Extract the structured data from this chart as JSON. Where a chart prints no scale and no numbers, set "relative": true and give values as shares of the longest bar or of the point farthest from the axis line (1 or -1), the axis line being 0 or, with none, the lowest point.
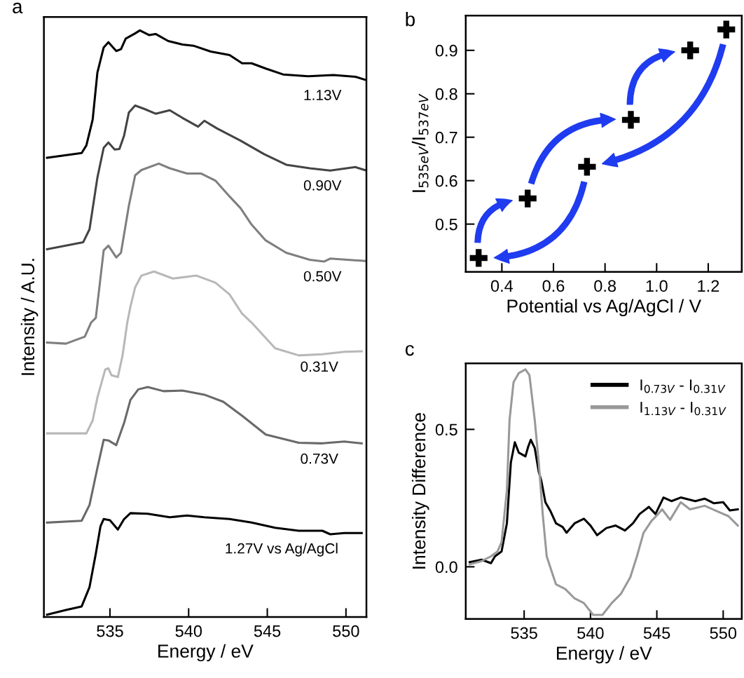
{
  "chart_data": [
    {
      "type": "line",
      "xlabel": "Energy / eV",
      "ylabel": "Intensity / A.U.",
      "annotations": [
        "a"
      ],
      "relative": true,
      "xlim": [
        530.8,
        551.3
      ],
      "xticks": [
        535,
        540,
        545,
        550
      ],
      "series": [
        {
          "name": "1.13V",
          "color": "#000000",
          "x": [
            531.0,
            533.2,
            533.5,
            533.9,
            534.2,
            534.6,
            534.9,
            535.4,
            535.7,
            536.0,
            536.6,
            536.9,
            537.5,
            537.9,
            538.7,
            539.6,
            540.3,
            541.4,
            542.6,
            543.4,
            544.0,
            544.9,
            546.0,
            547.6,
            549.2,
            550.6,
            551.2
          ],
          "values": [
            0.783,
            0.791,
            0.804,
            0.848,
            0.928,
            0.971,
            0.98,
            0.965,
            0.968,
            0.986,
            0.995,
            1.0,
            0.992,
            0.994,
            0.982,
            0.976,
            0.974,
            0.964,
            0.958,
            0.944,
            0.944,
            0.935,
            0.925,
            0.922,
            0.924,
            0.921,
            0.916
          ]
        },
        {
          "name": "0.90V",
          "color": "#444444",
          "x": [
            531.0,
            533.3,
            533.7,
            534.2,
            534.6,
            534.9,
            535.3,
            535.6,
            535.9,
            536.2,
            536.6,
            537.2,
            537.9,
            538.8,
            539.6,
            540.6,
            541.0,
            541.8,
            543.3,
            544.8,
            546.2,
            547.7,
            549.0,
            550.6,
            551.2
          ],
          "values": [
            0.627,
            0.639,
            0.661,
            0.749,
            0.8,
            0.809,
            0.797,
            0.798,
            0.821,
            0.86,
            0.872,
            0.866,
            0.858,
            0.864,
            0.851,
            0.836,
            0.846,
            0.833,
            0.812,
            0.789,
            0.771,
            0.765,
            0.761,
            0.767,
            0.762
          ]
        },
        {
          "name": "0.50V",
          "color": "#7f7f7f",
          "x": [
            531.0,
            532.2,
            533.4,
            533.8,
            534.1,
            534.6,
            534.9,
            535.4,
            535.7,
            536.2,
            536.6,
            537.0,
            538.1,
            538.8,
            539.9,
            540.8,
            541.7,
            542.6,
            543.3,
            544.0,
            544.9,
            546.2,
            547.7,
            548.6,
            549.0,
            551.2
          ],
          "values": [
            0.468,
            0.466,
            0.478,
            0.502,
            0.51,
            0.625,
            0.633,
            0.613,
            0.621,
            0.701,
            0.753,
            0.762,
            0.773,
            0.765,
            0.756,
            0.756,
            0.744,
            0.717,
            0.697,
            0.669,
            0.642,
            0.621,
            0.609,
            0.606,
            0.611,
            0.607
          ]
        },
        {
          "name": "0.31V",
          "color": "#b8b8b8",
          "x": [
            531.0,
            533.5,
            533.9,
            534.2,
            534.7,
            534.9,
            535.1,
            535.5,
            535.8,
            536.1,
            536.3,
            536.6,
            537.0,
            537.8,
            539.0,
            540.5,
            541.7,
            542.6,
            543.4,
            544.0,
            545.5,
            547.0,
            548.5,
            549.9,
            551.0
          ],
          "values": [
            0.313,
            0.313,
            0.335,
            0.374,
            0.422,
            0.424,
            0.412,
            0.409,
            0.446,
            0.502,
            0.529,
            0.562,
            0.582,
            0.589,
            0.577,
            0.582,
            0.57,
            0.55,
            0.517,
            0.502,
            0.458,
            0.446,
            0.448,
            0.452,
            0.453
          ]
        },
        {
          "name": "0.73V",
          "color": "#696969",
          "x": [
            531.0,
            533.2,
            533.7,
            534.2,
            534.6,
            534.9,
            535.4,
            535.9,
            536.3,
            536.8,
            537.4,
            538.4,
            539.6,
            541.0,
            542.2,
            543.4,
            544.9,
            547.0,
            548.5,
            549.9,
            551.0
          ],
          "values": [
            0.161,
            0.164,
            0.191,
            0.254,
            0.302,
            0.301,
            0.293,
            0.331,
            0.37,
            0.388,
            0.392,
            0.385,
            0.386,
            0.379,
            0.367,
            0.343,
            0.311,
            0.297,
            0.296,
            0.299,
            0.296
          ]
        },
        {
          "name": "1.27V vs Ag/AgCl",
          "color": "#000000",
          "x": [
            531.0,
            532.2,
            533.2,
            533.7,
            534.1,
            534.4,
            534.6,
            535.0,
            535.5,
            535.9,
            536.3,
            537.4,
            538.8,
            539.9,
            541.0,
            542.6,
            544.0,
            545.5,
            547.0,
            548.5,
            549.0,
            549.9,
            551.0
          ],
          "values": [
            0.004,
            0.012,
            0.018,
            0.051,
            0.108,
            0.155,
            0.167,
            0.165,
            0.149,
            0.167,
            0.177,
            0.176,
            0.17,
            0.173,
            0.17,
            0.167,
            0.161,
            0.152,
            0.147,
            0.147,
            0.141,
            0.143,
            0.143
          ]
        }
      ]
    },
    {
      "type": "scatter",
      "xlabel": "Potential vs Ag/AgCl / V",
      "ylabel": "I$_{535eV}$/I$_{537eV}$",
      "annotations": [
        "b"
      ],
      "marker": "cross",
      "color": "#000000",
      "x": [
        0.31,
        0.5,
        0.73,
        0.9,
        1.13,
        1.27
      ],
      "values": [
        0.422,
        0.559,
        0.632,
        0.74,
        0.9,
        0.948
      ],
      "xlim": [
        0.26,
        1.33
      ],
      "ylim": [
        0.39,
        0.98
      ],
      "xticks": [
        0.4,
        0.6,
        0.8,
        {
          "value": 1,
          "label": "1.0"
        },
        1.2
      ],
      "yticks": [
        0.5,
        0.6,
        0.7,
        0.8,
        0.9
      ]
    },
    {
      "type": "line",
      "xlabel": "Energy / eV",
      "ylabel": "Intensity Difference",
      "annotations": [
        "c"
      ],
      "legend": "top right",
      "xlim": [
        530.6,
        551.4
      ],
      "ylim": [
        -0.19,
        0.74
      ],
      "xticks": [
        535,
        540,
        545,
        550
      ],
      "yticks": [
        {
          "value": 0,
          "label": "0.0"
        },
        0.5
      ],
      "series": [
        {
          "name": "I$_{0.73V}$ - I$_{0.31V}$",
          "color": "#000000",
          "x": [
            530.9,
            531.8,
            532.5,
            532.8,
            533.3,
            533.7,
            534.0,
            534.3,
            534.6,
            535.1,
            535.3,
            535.5,
            535.8,
            536.1,
            536.3,
            536.6,
            537.0,
            537.4,
            537.9,
            538.2,
            538.8,
            539.5,
            540.0,
            540.5,
            541.2,
            541.9,
            542.6,
            543.2,
            543.7,
            544.4,
            544.9,
            545.5,
            546.1,
            546.8,
            547.9,
            548.6,
            549.3,
            550.0,
            550.5,
            551.1
          ],
          "values": [
            0.017,
            0.026,
            0.013,
            0.038,
            0.056,
            0.158,
            0.38,
            0.453,
            0.415,
            0.402,
            0.436,
            0.462,
            0.432,
            0.346,
            0.312,
            0.235,
            0.201,
            0.158,
            0.145,
            0.124,
            0.158,
            0.175,
            0.15,
            0.115,
            0.141,
            0.15,
            0.132,
            0.158,
            0.192,
            0.218,
            0.192,
            0.252,
            0.239,
            0.252,
            0.239,
            0.248,
            0.231,
            0.235,
            0.205,
            0.209
          ]
        },
        {
          "name": "I$_{1.13V}$ - I$_{0.31V}$",
          "color": "#999999",
          "x": [
            530.9,
            531.8,
            532.5,
            533.0,
            533.3,
            533.7,
            533.9,
            534.2,
            534.6,
            535.1,
            535.4,
            535.8,
            536.1,
            536.4,
            536.7,
            537.4,
            538.1,
            538.8,
            539.5,
            540.2,
            540.9,
            541.6,
            542.3,
            543.0,
            543.5,
            544.0,
            544.6,
            545.1,
            545.4,
            546.0,
            546.8,
            547.5,
            548.6,
            549.6,
            550.4,
            551.1
          ],
          "values": [
            0.009,
            0.021,
            0.038,
            0.056,
            0.09,
            0.278,
            0.534,
            0.671,
            0.705,
            0.718,
            0.697,
            0.534,
            0.38,
            0.192,
            0.038,
            -0.064,
            -0.081,
            -0.115,
            -0.132,
            -0.175,
            -0.175,
            -0.132,
            -0.098,
            -0.038,
            0.038,
            0.124,
            0.167,
            0.192,
            0.209,
            0.171,
            0.235,
            0.209,
            0.222,
            0.201,
            0.184,
            0.15
          ]
        }
      ]
    }
  ]
}
